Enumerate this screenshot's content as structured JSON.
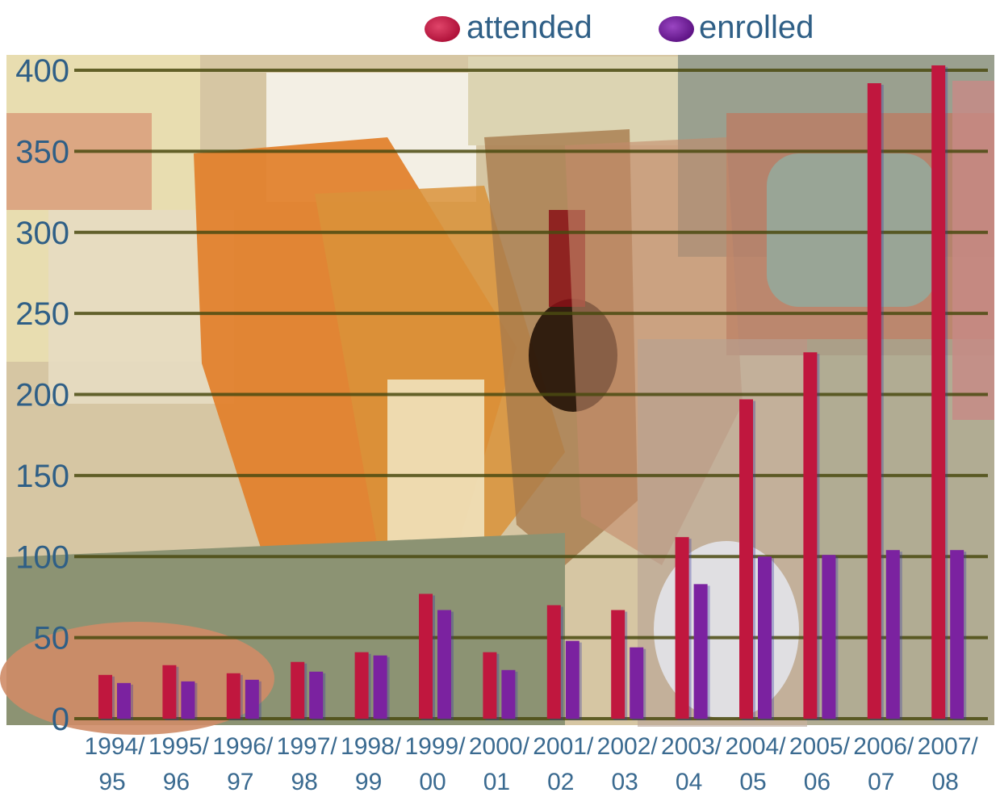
{
  "chart_data": {
    "type": "bar",
    "categories": [
      [
        "1994/",
        "95"
      ],
      [
        "1995/",
        "96"
      ],
      [
        "1996/",
        "97"
      ],
      [
        "1997/",
        "98"
      ],
      [
        "1998/",
        "99"
      ],
      [
        "1999/",
        "00"
      ],
      [
        "2000/",
        "01"
      ],
      [
        "2001/",
        "02"
      ],
      [
        "2002/",
        "03"
      ],
      [
        "2003/",
        "04"
      ],
      [
        "2004/",
        "05"
      ],
      [
        "2005/",
        "06"
      ],
      [
        "2006/",
        "07"
      ],
      [
        "2007/",
        "08"
      ]
    ],
    "series": [
      {
        "name": "attended",
        "color": "#c0173e",
        "values": [
          27,
          33,
          28,
          35,
          41,
          77,
          41,
          70,
          67,
          112,
          197,
          226,
          392,
          403
        ]
      },
      {
        "name": "enrolled",
        "color": "#7b22a0",
        "values": [
          22,
          23,
          24,
          29,
          39,
          67,
          30,
          48,
          44,
          83,
          100,
          101,
          104,
          104
        ]
      }
    ],
    "yticks": [
      "0",
      "50",
      "100",
      "150",
      "200",
      "250",
      "300",
      "350",
      "400"
    ],
    "ylim": [
      0,
      400
    ],
    "grid": true,
    "legend_position": "top"
  }
}
